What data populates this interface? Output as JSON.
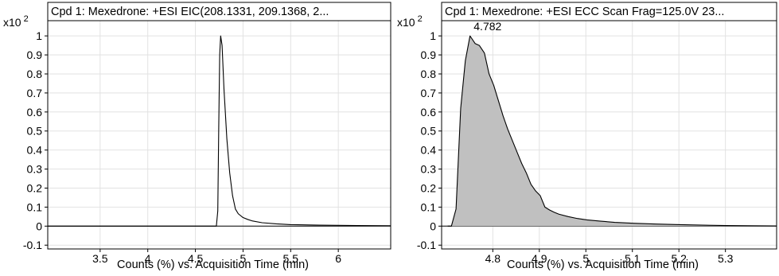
{
  "chart_data": [
    {
      "type": "line",
      "title": "Cpd 1: Mexedrone: +ESI EIC(208.1331, 209.1368, 2...",
      "xlabel": "Counts (%) vs. Acquisition Time (min)",
      "ylabel": "",
      "y_multiplier": "x10 2",
      "xlim": [
        2.95,
        6.55
      ],
      "ylim": [
        -0.12,
        1.08
      ],
      "xticks": [
        3.5,
        4,
        4.5,
        5,
        5.5,
        6
      ],
      "xtick_labels": [
        "3.5",
        "4",
        "4.5",
        "5",
        "5.5",
        "6"
      ],
      "yticks": [
        -0.1,
        0,
        0.1,
        0.2,
        0.3,
        0.4,
        0.5,
        0.6,
        0.7,
        0.8,
        0.9,
        1
      ],
      "ytick_labels": [
        "-0.1",
        "0",
        "0.1",
        "0.2",
        "0.3",
        "0.4",
        "0.5",
        "0.6",
        "0.7",
        "0.8",
        "0.9",
        "1"
      ],
      "grid": true,
      "fill": false,
      "series": [
        {
          "x": [
            2.95,
            4.72,
            4.735,
            4.745,
            4.755,
            4.765,
            4.78,
            4.8,
            4.83,
            4.86,
            4.89,
            4.92,
            4.95,
            5.0,
            5.05,
            5.1,
            5.2,
            5.35,
            5.5,
            5.8,
            6.2,
            6.55
          ],
          "y": [
            0,
            0,
            0.08,
            0.52,
            0.9,
            1.0,
            0.95,
            0.72,
            0.46,
            0.28,
            0.16,
            0.09,
            0.065,
            0.045,
            0.035,
            0.027,
            0.018,
            0.012,
            0.008,
            0.005,
            0.003,
            0.002
          ]
        }
      ],
      "annotations": []
    },
    {
      "type": "area",
      "title": "Cpd 1: Mexedrone: +ESI ECC Scan Frag=125.0V 23...",
      "xlabel": "Counts (%) vs. Acquisition Time (min)",
      "ylabel": "",
      "y_multiplier": "x10 2",
      "xlim": [
        4.69,
        5.41
      ],
      "ylim": [
        -0.12,
        1.08
      ],
      "xticks": [
        4.8,
        4.9,
        5,
        5.1,
        5.2,
        5.3
      ],
      "xtick_labels": [
        "4.8",
        "4.9",
        "5",
        "5.1",
        "5.2",
        "5.3"
      ],
      "yticks": [
        -0.1,
        0,
        0.1,
        0.2,
        0.3,
        0.4,
        0.5,
        0.6,
        0.7,
        0.8,
        0.9,
        1
      ],
      "ytick_labels": [
        "-0.1",
        "0",
        "0.1",
        "0.2",
        "0.3",
        "0.4",
        "0.5",
        "0.6",
        "0.7",
        "0.8",
        "0.9",
        "1"
      ],
      "grid": true,
      "fill": true,
      "fill_color": "#c0c0c0",
      "series": [
        {
          "x": [
            4.703,
            4.711,
            4.721,
            4.731,
            4.741,
            4.751,
            4.762,
            4.771,
            4.782,
            4.792,
            4.802,
            4.812,
            4.822,
            4.832,
            4.842,
            4.852,
            4.862,
            4.872,
            4.882,
            4.892,
            4.902,
            4.912,
            4.922,
            4.932,
            4.942,
            4.962,
            4.982,
            5.002,
            5.032,
            5.062,
            5.102,
            5.152,
            5.202,
            5.252,
            5.302,
            5.352,
            5.41
          ],
          "y": [
            0,
            0,
            0.09,
            0.62,
            0.87,
            1.0,
            0.96,
            0.95,
            0.91,
            0.8,
            0.74,
            0.66,
            0.58,
            0.51,
            0.45,
            0.39,
            0.33,
            0.28,
            0.22,
            0.185,
            0.16,
            0.1,
            0.085,
            0.073,
            0.063,
            0.05,
            0.04,
            0.033,
            0.026,
            0.02,
            0.015,
            0.011,
            0.008,
            0.005,
            0.003,
            0.002,
            0.001
          ]
        }
      ],
      "annotations": [
        {
          "text": "4.782",
          "x": 4.782,
          "y": 1.0
        }
      ]
    }
  ]
}
